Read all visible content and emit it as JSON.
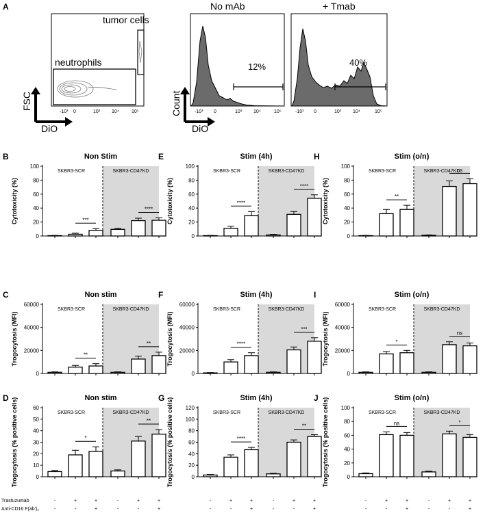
{
  "panel_a": {
    "letter": "A",
    "dotplot": {
      "ylabel": "FSC",
      "xlabel": "DiO",
      "gate_tumor": "tumor cells",
      "gate_neutrophils": "neutrophils",
      "ticks": [
        "-10³",
        "0",
        "10³",
        "10⁴",
        "10⁵"
      ]
    },
    "hist_no_mab": {
      "title": "No mAb",
      "percent": "12%",
      "ylabel": "Count",
      "xlabel": "DiO",
      "ticks": [
        "-10³",
        "0",
        "10³",
        "10⁴",
        "10⁵"
      ]
    },
    "hist_tmab": {
      "title": "+ Tmab",
      "percent": "40%",
      "ticks": [
        "-10³",
        "0",
        "10³",
        "10⁴",
        "10⁵"
      ]
    }
  },
  "treatments": {
    "trastuzumab_label": "Trastuzumab",
    "anticd16_label": "Anti-CD16 F(ab')₂",
    "trastuzumab_signs": [
      "-",
      "+",
      "+",
      "-",
      "+",
      "+"
    ],
    "anticd16_signs": [
      "-",
      "-",
      "+",
      "-",
      "-",
      "+"
    ]
  },
  "groups": {
    "left": "SKBR3-SCR",
    "right": "SKBR3-CD47KD"
  },
  "colors": {
    "shade": "#d9d9d9",
    "hist_fill": "#6b6b6b",
    "bar_fill": "#ffffff"
  },
  "chart_data": [
    {
      "type": "bar",
      "id": "B",
      "letter": "B",
      "title": "Non Stim",
      "ylabel": "Cytotoxicity (%)",
      "ylim": [
        0,
        100
      ],
      "yticks": [
        "0",
        "20",
        "40",
        "60",
        "80",
        "100"
      ],
      "categories": [
        "-/-",
        "+/-",
        "+/+",
        "-/-",
        "+/-",
        "+/+"
      ],
      "values": [
        0.5,
        2.5,
        8,
        9.5,
        22,
        22.5
      ],
      "errors": [
        0.3,
        1.5,
        2.5,
        1.5,
        3.5,
        3.5
      ],
      "sig": [
        {
          "from": 1,
          "to": 2,
          "label": "***"
        },
        {
          "from": 4,
          "to": 5,
          "label": "****"
        }
      ]
    },
    {
      "type": "bar",
      "id": "E",
      "letter": "E",
      "title": "Stim (4h)",
      "ylabel": "Cytotoxicity (%)",
      "ylim": [
        0,
        100
      ],
      "yticks": [
        "0",
        "20",
        "40",
        "60",
        "80",
        "100"
      ],
      "categories": [
        "-/-",
        "+/-",
        "+/+",
        "-/-",
        "+/-",
        "+/+"
      ],
      "values": [
        0.5,
        11,
        29,
        1.5,
        31,
        54
      ],
      "errors": [
        0.3,
        3,
        6,
        0.8,
        4,
        5
      ],
      "sig": [
        {
          "from": 1,
          "to": 2,
          "label": "****"
        },
        {
          "from": 4,
          "to": 5,
          "label": "****"
        }
      ]
    },
    {
      "type": "bar",
      "id": "H",
      "letter": "H",
      "title": "Stim (o/n)",
      "ylabel": "Cytotoxicity (%)",
      "ylim": [
        0,
        100
      ],
      "yticks": [
        "0",
        "20",
        "40",
        "60",
        "80",
        "100"
      ],
      "categories": [
        "-/-",
        "+/-",
        "+/+",
        "-/-",
        "+/-",
        "+/+"
      ],
      "values": [
        0.5,
        32,
        38,
        1,
        71,
        75
      ],
      "errors": [
        0.3,
        6,
        6,
        0.5,
        8,
        7
      ],
      "sig": [
        {
          "from": 1,
          "to": 2,
          "label": "**"
        },
        {
          "from": 4,
          "to": 5,
          "label": "ns"
        }
      ]
    },
    {
      "type": "bar",
      "id": "C",
      "letter": "C",
      "title": "Non stim",
      "ylabel": "Trogocytosis (MFI)",
      "ylim": [
        0,
        60000
      ],
      "yticks": [
        "0",
        "20000",
        "40000",
        "60000"
      ],
      "categories": [
        "-/-",
        "+/-",
        "+/+",
        "-/-",
        "+/-",
        "+/+"
      ],
      "values": [
        1000,
        5500,
        6500,
        1000,
        12500,
        15500
      ],
      "errors": [
        400,
        1500,
        2000,
        400,
        2500,
        3000
      ],
      "sig": [
        {
          "from": 1,
          "to": 2,
          "label": "**"
        },
        {
          "from": 4,
          "to": 5,
          "label": "**"
        }
      ]
    },
    {
      "type": "bar",
      "id": "F",
      "letter": "F",
      "title": "Stim (4h)",
      "ylabel": "Trogocytosis (MFI)",
      "ylim": [
        0,
        60000
      ],
      "yticks": [
        "0",
        "20000",
        "40000",
        "60000"
      ],
      "categories": [
        "-/-",
        "+/-",
        "+/+",
        "-/-",
        "+/-",
        "+/+"
      ],
      "values": [
        500,
        10000,
        15500,
        1000,
        20500,
        28000
      ],
      "errors": [
        300,
        2000,
        2500,
        400,
        2500,
        3000
      ],
      "sig": [
        {
          "from": 1,
          "to": 2,
          "label": "****"
        },
        {
          "from": 4,
          "to": 5,
          "label": "***"
        }
      ]
    },
    {
      "type": "bar",
      "id": "I",
      "letter": "I",
      "title": "Stim (o/n)",
      "ylabel": "Trogocytosis (MFI)",
      "ylim": [
        0,
        60000
      ],
      "yticks": [
        "0",
        "20000",
        "40000",
        "60000"
      ],
      "categories": [
        "-/-",
        "+/-",
        "+/+",
        "-/-",
        "+/-",
        "+/+"
      ],
      "values": [
        1000,
        17000,
        18000,
        1000,
        25000,
        24000
      ],
      "errors": [
        400,
        2000,
        2000,
        400,
        2500,
        2500
      ],
      "sig": [
        {
          "from": 1,
          "to": 2,
          "label": "*"
        },
        {
          "from": 4,
          "to": 5,
          "label": "ns"
        }
      ]
    },
    {
      "type": "bar",
      "id": "D",
      "letter": "D",
      "title": "Non stim",
      "ylabel": "Trogocytosis (% positive cells)",
      "ylim": [
        0,
        60
      ],
      "yticks": [
        "0",
        "10",
        "20",
        "30",
        "40",
        "50",
        "60"
      ],
      "categories": [
        "-/-",
        "+/-",
        "+/+",
        "-/-",
        "+/-",
        "+/+"
      ],
      "values": [
        4.5,
        19,
        22,
        5,
        31,
        37
      ],
      "errors": [
        1,
        4,
        4,
        1,
        4,
        4
      ],
      "sig": [
        {
          "from": 1,
          "to": 2,
          "label": "*"
        },
        {
          "from": 4,
          "to": 5,
          "label": "**"
        }
      ]
    },
    {
      "type": "bar",
      "id": "G",
      "letter": "G",
      "title": "Stim (4h)",
      "ylabel": "Trogocytosis (% positive cells)",
      "ylim": [
        0,
        120
      ],
      "yticks": [
        "0",
        "20",
        "40",
        "60",
        "80",
        "100",
        "120"
      ],
      "categories": [
        "-/-",
        "+/-",
        "+/+",
        "-/-",
        "+/-",
        "+/+"
      ],
      "values": [
        3,
        34,
        47,
        5,
        60,
        70
      ],
      "errors": [
        1,
        4,
        4,
        1,
        4,
        3
      ],
      "sig": [
        {
          "from": 1,
          "to": 2,
          "label": "****"
        },
        {
          "from": 4,
          "to": 5,
          "label": "**"
        }
      ]
    },
    {
      "type": "bar",
      "id": "J",
      "letter": "J",
      "title": "Stim (o/n)",
      "ylabel": "Trogocytosis (% positive cells)",
      "ylim": [
        0,
        100
      ],
      "yticks": [
        "0",
        "20",
        "40",
        "60",
        "80",
        "100"
      ],
      "categories": [
        "-/-",
        "+/-",
        "+/+",
        "-/-",
        "+/-",
        "+/+"
      ],
      "values": [
        4.5,
        61,
        60,
        7,
        62,
        57
      ],
      "errors": [
        1,
        4,
        4,
        1,
        4,
        4
      ],
      "sig": [
        {
          "from": 1,
          "to": 2,
          "label": "ns"
        },
        {
          "from": 4,
          "to": 5,
          "label": "*"
        }
      ]
    }
  ]
}
